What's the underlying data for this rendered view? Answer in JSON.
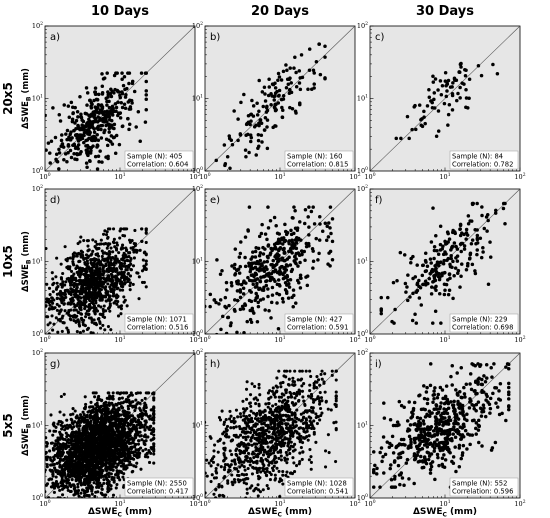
{
  "figure": {
    "column_titles": [
      "10 Days",
      "20 Days",
      "30 Days"
    ],
    "row_titles": [
      "20x5",
      "10x5",
      "5x5"
    ],
    "ylabel_main": "ΔSWE",
    "ylabel_sub": "B",
    "ylabel_unit": "(mm)",
    "xlabel_main": "ΔSWE",
    "xlabel_sub": "C",
    "xlabel_unit": "(mm)"
  },
  "chart_data": [
    {
      "type": "scatter",
      "panel": "a)",
      "sample_label": "Sample (N): 405",
      "correlation_label": "Correlation: 0.604",
      "n": 405,
      "r": 0.604,
      "xscale": "log",
      "yscale": "log",
      "xlim": [
        1,
        100
      ],
      "ylim": [
        1,
        100
      ],
      "xticks": [
        {
          "base": "10",
          "exp": "0"
        },
        {
          "base": "10",
          "exp": "1"
        },
        {
          "base": "10",
          "exp": "2"
        }
      ],
      "yticks": [
        {
          "base": "10",
          "exp": "0"
        },
        {
          "base": "10",
          "exp": "1"
        },
        {
          "base": "10",
          "exp": "2"
        }
      ],
      "reference_line": "1:1",
      "x_log_range": [
        0.0,
        1.3
      ],
      "y_log_range": [
        0.0,
        1.3
      ]
    },
    {
      "type": "scatter",
      "panel": "b)",
      "sample_label": "Sample (N): 160",
      "correlation_label": "Correlation: 0.815",
      "n": 160,
      "r": 0.815,
      "xscale": "log",
      "yscale": "log",
      "xlim": [
        1,
        100
      ],
      "ylim": [
        1,
        100
      ],
      "xticks": [
        {
          "base": "10",
          "exp": "0"
        },
        {
          "base": "10",
          "exp": "1"
        },
        {
          "base": "10",
          "exp": "2"
        }
      ],
      "yticks": [
        {
          "base": "10",
          "exp": "0"
        },
        {
          "base": "10",
          "exp": "1"
        },
        {
          "base": "10",
          "exp": "2"
        }
      ],
      "reference_line": "1:1",
      "x_log_range": [
        0.2,
        1.55
      ],
      "y_log_range": [
        0.0,
        1.7
      ]
    },
    {
      "type": "scatter",
      "panel": "c)",
      "sample_label": "Sample (N): 84",
      "correlation_label": "Correlation: 0.782",
      "n": 84,
      "r": 0.782,
      "xscale": "log",
      "yscale": "log",
      "xlim": [
        1,
        100
      ],
      "ylim": [
        1,
        100
      ],
      "xticks": [
        {
          "base": "10",
          "exp": "0"
        },
        {
          "base": "10",
          "exp": "1"
        },
        {
          "base": "10",
          "exp": "2"
        }
      ],
      "yticks": [
        {
          "base": "10",
          "exp": "0"
        },
        {
          "base": "10",
          "exp": "1"
        },
        {
          "base": "10",
          "exp": "2"
        }
      ],
      "reference_line": "1:1",
      "x_log_range": [
        0.4,
        1.65
      ],
      "y_log_range": [
        0.5,
        1.65
      ]
    },
    {
      "type": "scatter",
      "panel": "d)",
      "sample_label": "Sample (N): 1071",
      "correlation_label": "Correlation: 0.516",
      "n": 1071,
      "r": 0.516,
      "xscale": "log",
      "yscale": "log",
      "xlim": [
        1,
        100
      ],
      "ylim": [
        1,
        100
      ],
      "xticks": [
        {
          "base": "10",
          "exp": "0"
        },
        {
          "base": "10",
          "exp": "1"
        },
        {
          "base": "10",
          "exp": "2"
        }
      ],
      "yticks": [
        {
          "base": "10",
          "exp": "0"
        },
        {
          "base": "10",
          "exp": "1"
        },
        {
          "base": "10",
          "exp": "2"
        }
      ],
      "reference_line": "1:1",
      "x_log_range": [
        0.0,
        1.3
      ],
      "y_log_range": [
        0.0,
        1.4
      ]
    },
    {
      "type": "scatter",
      "panel": "e)",
      "sample_label": "Sample (N): 427",
      "correlation_label": "Correlation: 0.591",
      "n": 427,
      "r": 0.591,
      "xscale": "log",
      "yscale": "log",
      "xlim": [
        1,
        100
      ],
      "ylim": [
        1,
        100
      ],
      "xticks": [
        {
          "base": "10",
          "exp": "0"
        },
        {
          "base": "10",
          "exp": "1"
        },
        {
          "base": "10",
          "exp": "2"
        }
      ],
      "yticks": [
        {
          "base": "10",
          "exp": "0"
        },
        {
          "base": "10",
          "exp": "1"
        },
        {
          "base": "10",
          "exp": "2"
        }
      ],
      "reference_line": "1:1",
      "x_log_range": [
        0.0,
        1.65
      ],
      "y_log_range": [
        0.0,
        1.7
      ]
    },
    {
      "type": "scatter",
      "panel": "f)",
      "sample_label": "Sample (N): 229",
      "correlation_label": "Correlation: 0.698",
      "n": 229,
      "r": 0.698,
      "xscale": "log",
      "yscale": "log",
      "xlim": [
        1,
        100
      ],
      "ylim": [
        1,
        100
      ],
      "xticks": [
        {
          "base": "10",
          "exp": "0"
        },
        {
          "base": "10",
          "exp": "1"
        },
        {
          "base": "10",
          "exp": "2"
        }
      ],
      "yticks": [
        {
          "base": "10",
          "exp": "0"
        },
        {
          "base": "10",
          "exp": "1"
        },
        {
          "base": "10",
          "exp": "2"
        }
      ],
      "reference_line": "1:1",
      "x_log_range": [
        0.2,
        1.75
      ],
      "y_log_range": [
        0.2,
        1.75
      ]
    },
    {
      "type": "scatter",
      "panel": "g)",
      "sample_label": "Sample (N): 2550",
      "correlation_label": "Correlation: 0.417",
      "n": 2550,
      "r": 0.417,
      "xscale": "log",
      "yscale": "log",
      "xlim": [
        1,
        100
      ],
      "ylim": [
        1,
        100
      ],
      "xticks": [
        {
          "base": "10",
          "exp": "0"
        },
        {
          "base": "10",
          "exp": "1"
        },
        {
          "base": "10",
          "exp": "2"
        }
      ],
      "yticks": [
        {
          "base": "10",
          "exp": "0"
        },
        {
          "base": "10",
          "exp": "1"
        },
        {
          "base": "10",
          "exp": "2"
        }
      ],
      "reference_line": "1:1",
      "x_log_range": [
        0.0,
        1.4
      ],
      "y_log_range": [
        0.0,
        1.4
      ]
    },
    {
      "type": "scatter",
      "panel": "h)",
      "sample_label": "Sample (N): 1028",
      "correlation_label": "Correlation: 0.541",
      "n": 1028,
      "r": 0.541,
      "xscale": "log",
      "yscale": "log",
      "xlim": [
        1,
        100
      ],
      "ylim": [
        1,
        100
      ],
      "xticks": [
        {
          "base": "10",
          "exp": "0"
        },
        {
          "base": "10",
          "exp": "1"
        },
        {
          "base": "10",
          "exp": "2"
        }
      ],
      "yticks": [
        {
          "base": "10",
          "exp": "0"
        },
        {
          "base": "10",
          "exp": "1"
        },
        {
          "base": "10",
          "exp": "2"
        }
      ],
      "reference_line": "1:1",
      "x_log_range": [
        0.0,
        1.7
      ],
      "y_log_range": [
        0.0,
        1.7
      ]
    },
    {
      "type": "scatter",
      "panel": "i)",
      "sample_label": "Sample (N): 552",
      "correlation_label": "Correlation: 0.596",
      "n": 552,
      "r": 0.596,
      "xscale": "log",
      "yscale": "log",
      "xlim": [
        1,
        100
      ],
      "ylim": [
        1,
        100
      ],
      "xticks": [
        {
          "base": "10",
          "exp": "0"
        },
        {
          "base": "10",
          "exp": "1"
        },
        {
          "base": "10",
          "exp": "2"
        }
      ],
      "yticks": [
        {
          "base": "10",
          "exp": "0"
        },
        {
          "base": "10",
          "exp": "1"
        },
        {
          "base": "10",
          "exp": "2"
        }
      ],
      "reference_line": "1:1",
      "x_log_range": [
        0.1,
        1.8
      ],
      "y_log_range": [
        0.2,
        1.8
      ]
    }
  ]
}
